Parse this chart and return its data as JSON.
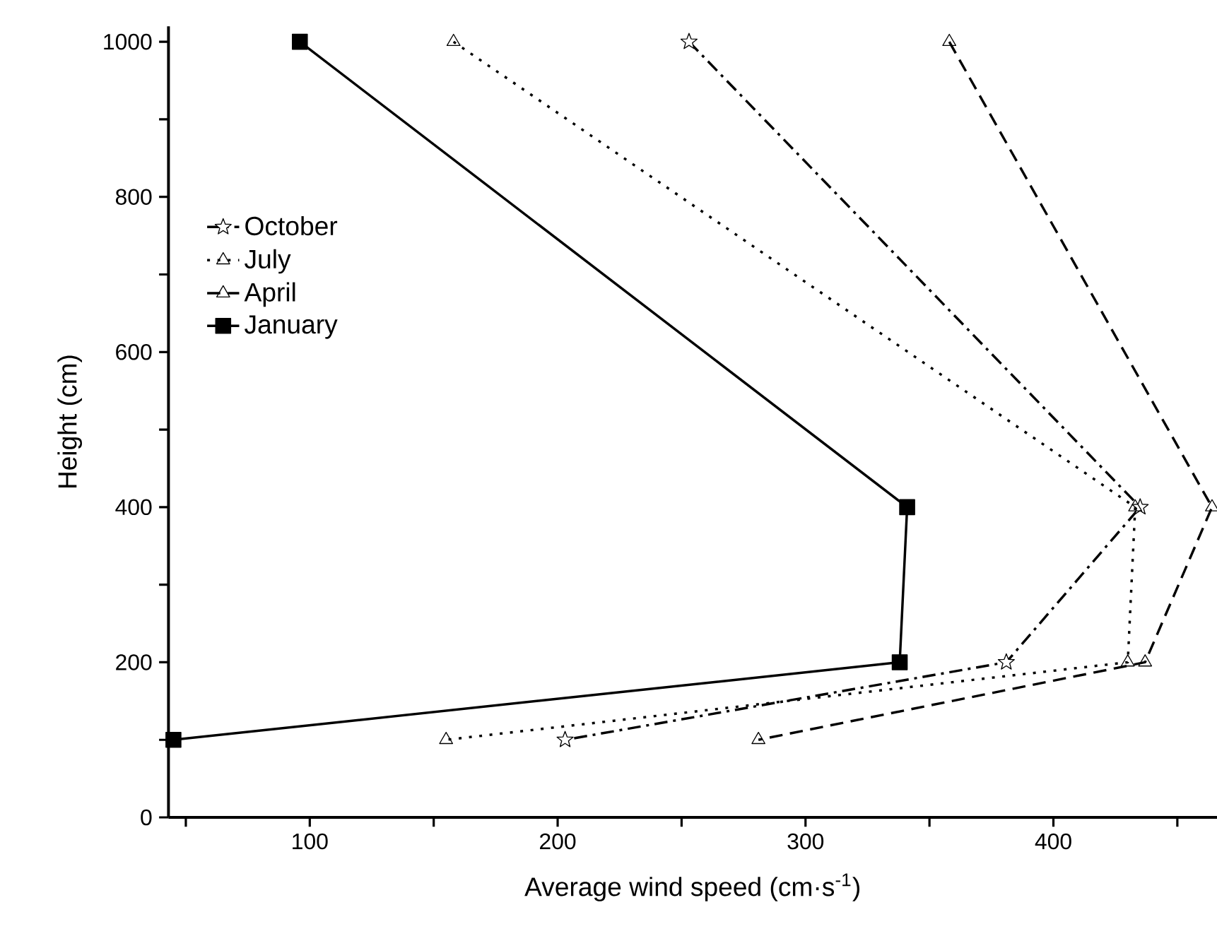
{
  "chart_data": {
    "type": "line",
    "xlabel": "Average wind speed (cm·s$^{-1}$)",
    "ylabel": "Height (cm)",
    "xlim": [
      43,
      466
    ],
    "ylim": [
      0,
      1020
    ],
    "xticks": [
      {
        "value": 50,
        "label": null
      },
      100,
      {
        "value": 150,
        "label": null
      },
      200,
      {
        "value": 250,
        "label": null
      },
      300,
      {
        "value": 350,
        "label": null
      },
      400,
      {
        "value": 450,
        "label": null
      }
    ],
    "yticks": [
      0,
      {
        "value": 100,
        "label": null
      },
      200,
      {
        "value": 300,
        "label": null
      },
      400,
      {
        "value": 500,
        "label": null
      },
      600,
      {
        "value": 700,
        "label": null
      },
      800,
      {
        "value": 900,
        "label": null
      },
      1000
    ],
    "legend": "left",
    "grid": false,
    "series": [
      {
        "name": "October",
        "color": "#000000",
        "marker": "star",
        "line_style": "dashdot",
        "x": [
          253,
          435,
          381,
          203
        ],
        "values": [
          1000,
          400,
          200,
          100
        ]
      },
      {
        "name": "July",
        "color": "#000000",
        "marker": "triangle",
        "line_style": "dotted",
        "x": [
          158,
          433,
          430,
          155
        ],
        "values": [
          1000,
          400,
          200,
          100
        ]
      },
      {
        "name": "April",
        "color": "#000000",
        "marker": "triangle",
        "line_style": "dashed",
        "x": [
          358,
          464,
          437,
          281
        ],
        "values": [
          1000,
          400,
          200,
          100
        ]
      },
      {
        "name": "January",
        "color": "#000000",
        "marker": "square",
        "line_style": "solid",
        "x": [
          96,
          341,
          338,
          45
        ],
        "values": [
          1000,
          400,
          200,
          100
        ]
      }
    ]
  }
}
